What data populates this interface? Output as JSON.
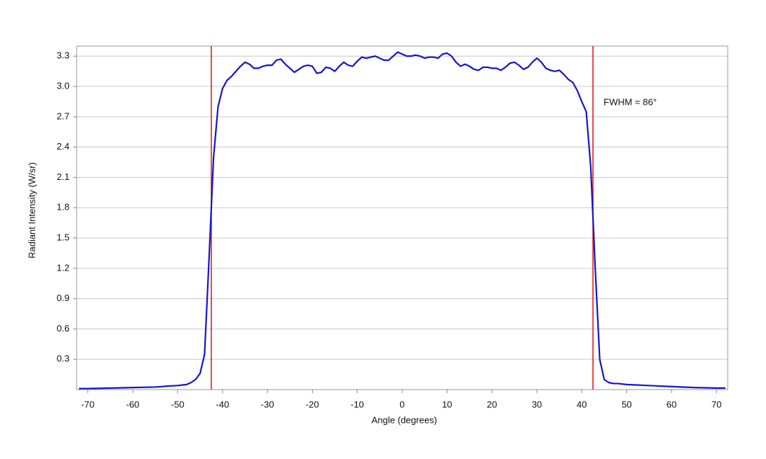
{
  "chart_data": {
    "type": "line",
    "xlabel": "Angle (degrees)",
    "ylabel": "Radiant Intensity (W/sr)",
    "annotation": "FWHM = 86°",
    "vlines": [
      -42.5,
      42.5
    ],
    "vline_color": "#e01e1e",
    "x": [
      -72,
      -70,
      -65,
      -60,
      -55,
      -52,
      -50,
      -48,
      -47,
      -46,
      -45,
      -44,
      -43,
      -42,
      -41,
      -40,
      -39,
      -38,
      -37,
      -36,
      -35,
      -34,
      -33,
      -32,
      -31,
      -30,
      -29,
      -28,
      -27,
      -26,
      -25,
      -24,
      -23,
      -22,
      -21,
      -20,
      -19,
      -18,
      -17,
      -16,
      -15,
      -14,
      -13,
      -12,
      -11,
      -10,
      -9,
      -8,
      -7,
      -6,
      -5,
      -4,
      -3,
      -2,
      -1,
      0,
      1,
      2,
      3,
      4,
      5,
      6,
      7,
      8,
      9,
      10,
      11,
      12,
      13,
      14,
      15,
      16,
      17,
      18,
      19,
      20,
      21,
      22,
      23,
      24,
      25,
      26,
      27,
      28,
      29,
      30,
      31,
      32,
      33,
      34,
      35,
      36,
      37,
      38,
      39,
      40,
      41,
      42,
      43,
      44,
      45,
      46,
      47,
      48,
      50,
      55,
      60,
      65,
      70,
      72
    ],
    "series": [
      {
        "name": "Radiant Intensity",
        "color": "#1616c8",
        "values": [
          0.01,
          0.01,
          0.015,
          0.02,
          0.025,
          0.035,
          0.04,
          0.05,
          0.07,
          0.1,
          0.16,
          0.35,
          1.3,
          2.3,
          2.8,
          2.98,
          3.06,
          3.1,
          3.15,
          3.2,
          3.24,
          3.22,
          3.18,
          3.18,
          3.2,
          3.21,
          3.21,
          3.26,
          3.27,
          3.22,
          3.18,
          3.14,
          3.17,
          3.2,
          3.21,
          3.2,
          3.13,
          3.14,
          3.19,
          3.18,
          3.15,
          3.2,
          3.24,
          3.21,
          3.2,
          3.25,
          3.29,
          3.28,
          3.29,
          3.3,
          3.28,
          3.26,
          3.26,
          3.3,
          3.34,
          3.32,
          3.3,
          3.3,
          3.31,
          3.3,
          3.28,
          3.29,
          3.29,
          3.28,
          3.32,
          3.33,
          3.3,
          3.24,
          3.2,
          3.22,
          3.2,
          3.17,
          3.16,
          3.19,
          3.19,
          3.18,
          3.18,
          3.16,
          3.19,
          3.23,
          3.24,
          3.21,
          3.17,
          3.19,
          3.24,
          3.28,
          3.24,
          3.18,
          3.16,
          3.15,
          3.16,
          3.12,
          3.07,
          3.04,
          2.96,
          2.85,
          2.75,
          2.2,
          1.2,
          0.3,
          0.1,
          0.07,
          0.06,
          0.06,
          0.05,
          0.04,
          0.03,
          0.02,
          0.015,
          0.015
        ]
      }
    ],
    "xlim": [
      -72.5,
      72.5
    ],
    "xticks": [
      -70,
      -60,
      -50,
      -40,
      -30,
      -20,
      -10,
      0,
      10,
      20,
      30,
      40,
      50,
      60,
      70
    ],
    "ylim": [
      0,
      3.4
    ],
    "yticks": [
      0.3,
      0.6,
      0.9,
      1.2,
      1.5,
      1.8,
      2.1,
      2.4,
      2.7,
      {
        "value": 3.0,
        "label": "3.0"
      },
      3.3
    ],
    "grid": true
  }
}
